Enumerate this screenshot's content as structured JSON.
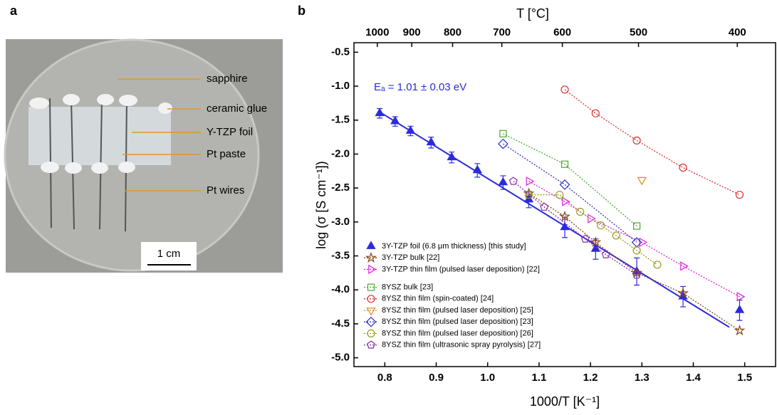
{
  "panel_labels": [
    "a",
    "b"
  ],
  "photo": {
    "labels": [
      "sapphire",
      "ceramic glue",
      "Y-TZP foil",
      "Pt paste",
      "Pt wires"
    ],
    "scale_bar": "1 cm"
  },
  "chart_data": {
    "type": "scatter",
    "xlabel": "1000/T [K⁻¹]",
    "ylabel": "log (σ [S cm⁻¹])",
    "annotation": "Eₐ = 1.01 ± 0.03 eV",
    "xlim": [
      0.74,
      1.56
    ],
    "ylim": [
      -5.13,
      -0.36
    ],
    "xticks": [
      0.8,
      0.9,
      {
        "value": 1,
        "label": "1.0"
      },
      1.1,
      1.2,
      1.3,
      1.4,
      1.5
    ],
    "yticks": [
      -0.5,
      {
        "value": -1,
        "label": "-1.0"
      },
      -1.5,
      {
        "value": -2,
        "label": "-2.0"
      },
      -2.5,
      {
        "value": -3,
        "label": "-3.0"
      },
      -3.5,
      {
        "value": -4,
        "label": "-4.0"
      },
      -4.5,
      {
        "value": -5,
        "label": "-5.0"
      }
    ],
    "top_axis": {
      "label": "T [°C]",
      "ticks": [
        1000,
        900,
        800,
        700,
        600,
        500,
        400
      ]
    },
    "fit": {
      "color": "#2b2bdc",
      "x": [
        0.79,
        1.47
      ],
      "values": [
        -1.38,
        -4.55
      ]
    },
    "series": [
      {
        "name": "3Y-TZP foil (6.8 μm thickness) [this study]",
        "color": "#2b2bdc",
        "marker": "triangle",
        "filled": true,
        "line": false,
        "x": [
          0.79,
          0.82,
          0.85,
          0.89,
          0.93,
          0.98,
          1.03,
          1.08,
          1.15,
          1.21,
          1.29,
          1.38,
          1.49
        ],
        "values": [
          -1.4,
          -1.52,
          -1.66,
          -1.83,
          -2.05,
          -2.24,
          -2.42,
          -2.67,
          -3.08,
          -3.4,
          -3.73,
          -4.1,
          -4.3
        ],
        "errors": [
          0.07,
          0.07,
          0.07,
          0.08,
          0.08,
          0.1,
          0.1,
          0.12,
          0.15,
          0.15,
          0.2,
          0.15,
          0.15
        ]
      },
      {
        "name": "3Y-TZP bulk [22]",
        "color": "#8b4513",
        "marker": "star",
        "filled": false,
        "line": true,
        "x": [
          1.08,
          1.15,
          1.21,
          1.29,
          1.38,
          1.49
        ],
        "values": [
          -2.58,
          -2.92,
          -3.3,
          -3.75,
          -4.05,
          -4.6
        ]
      },
      {
        "name": "3Y-TZP thin film (pulsed laser deposition) [22]",
        "color": "#e020e0",
        "marker": "tri-right",
        "filled": false,
        "line": true,
        "x": [
          1.08,
          1.15,
          1.2,
          1.3,
          1.38,
          1.49
        ],
        "values": [
          -2.4,
          -2.7,
          -2.95,
          -3.3,
          -3.65,
          -4.1
        ]
      },
      {
        "name": "8YSZ bulk [23]",
        "color": "#4aa832",
        "marker": "square",
        "filled": false,
        "line": true,
        "x": [
          1.03,
          1.15,
          1.29
        ],
        "values": [
          -1.7,
          -2.15,
          -3.06
        ]
      },
      {
        "name": "8YSZ thin film (spin-coated) [24]",
        "color": "#e03030",
        "marker": "circle",
        "filled": false,
        "line": true,
        "x": [
          1.15,
          1.21,
          1.29,
          1.38,
          1.49
        ],
        "values": [
          -1.05,
          -1.4,
          -1.8,
          -2.2,
          -2.6
        ]
      },
      {
        "name": "8YSZ thin film (pulsed laser deposition) [25]",
        "color": "#e08a20",
        "marker": "tri-down",
        "filled": false,
        "line": true,
        "x": [
          1.3
        ],
        "values": [
          -2.38
        ]
      },
      {
        "name": "8YSZ thin film (pulsed laser deposition) [23]",
        "color": "#3030c0",
        "marker": "diamond",
        "filled": false,
        "line": true,
        "x": [
          1.03,
          1.15,
          1.29
        ],
        "values": [
          -1.85,
          -2.45,
          -3.3
        ]
      },
      {
        "name": "8YSZ thin film (pulsed laser deposition) [26]",
        "color": "#9a9a20",
        "marker": "circle",
        "filled": false,
        "line": true,
        "x": [
          1.08,
          1.14,
          1.18,
          1.22,
          1.25,
          1.29,
          1.33
        ],
        "values": [
          -2.6,
          -2.6,
          -2.85,
          -3.05,
          -3.2,
          -3.42,
          -3.63
        ]
      },
      {
        "name": "8YSZ thin film (ultrasonic spray pyrolysis) [27]",
        "color": "#8030a0",
        "marker": "pentagon",
        "filled": false,
        "line": true,
        "x": [
          1.05,
          1.11,
          1.19,
          1.23,
          1.29
        ],
        "values": [
          -2.4,
          -2.78,
          -3.25,
          -3.48,
          -3.78
        ]
      }
    ]
  }
}
